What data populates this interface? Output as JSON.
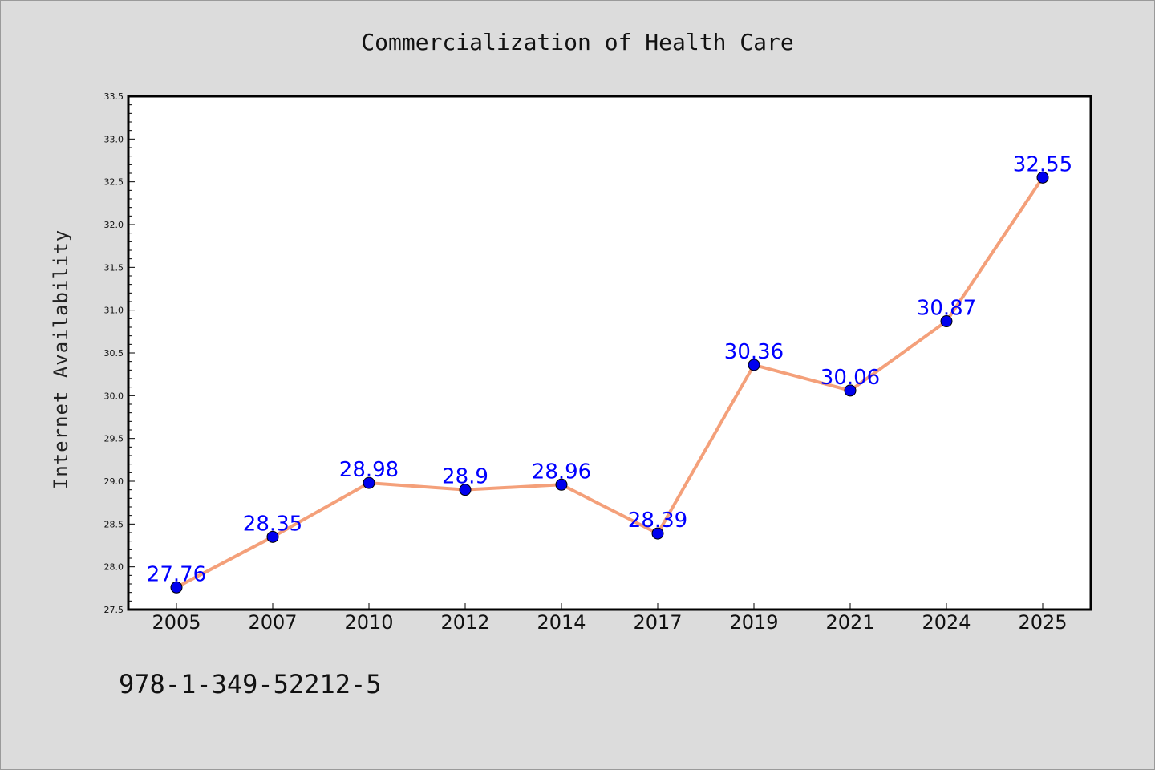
{
  "chart_data": {
    "type": "line",
    "title": "Commercialization of Health Care",
    "xlabel": "",
    "ylabel": "Internet Availability",
    "categories": [
      "2005",
      "2007",
      "2010",
      "2012",
      "2014",
      "2017",
      "2019",
      "2021",
      "2024",
      "2025"
    ],
    "series": [
      {
        "values": [
          27.76,
          28.35,
          28.98,
          28.9,
          28.96,
          28.39,
          30.36,
          30.06,
          30.87,
          32.55
        ],
        "line_color": "#f4a07a",
        "marker_color": "#0000ee"
      }
    ],
    "data_labels": [
      "27.76",
      "28.35",
      "28.98",
      "28.9",
      "28.96",
      "28.39",
      "30.36",
      "30.06",
      "30.87",
      "32.55"
    ],
    "ylim": [
      27.5,
      33.5
    ],
    "yticks": [
      "27.5",
      "28.0",
      "28.5",
      "29.0",
      "29.5",
      "30.0",
      "30.5",
      "31.0",
      "31.5",
      "32.0",
      "32.5",
      "33.0",
      "33.5"
    ],
    "grid": false,
    "legend": "none"
  },
  "footnote": "978-1-349-52212-5",
  "colors": {
    "background": "#dcdcdc",
    "plot_background": "#ffffff",
    "label_color": "#0000ff"
  }
}
